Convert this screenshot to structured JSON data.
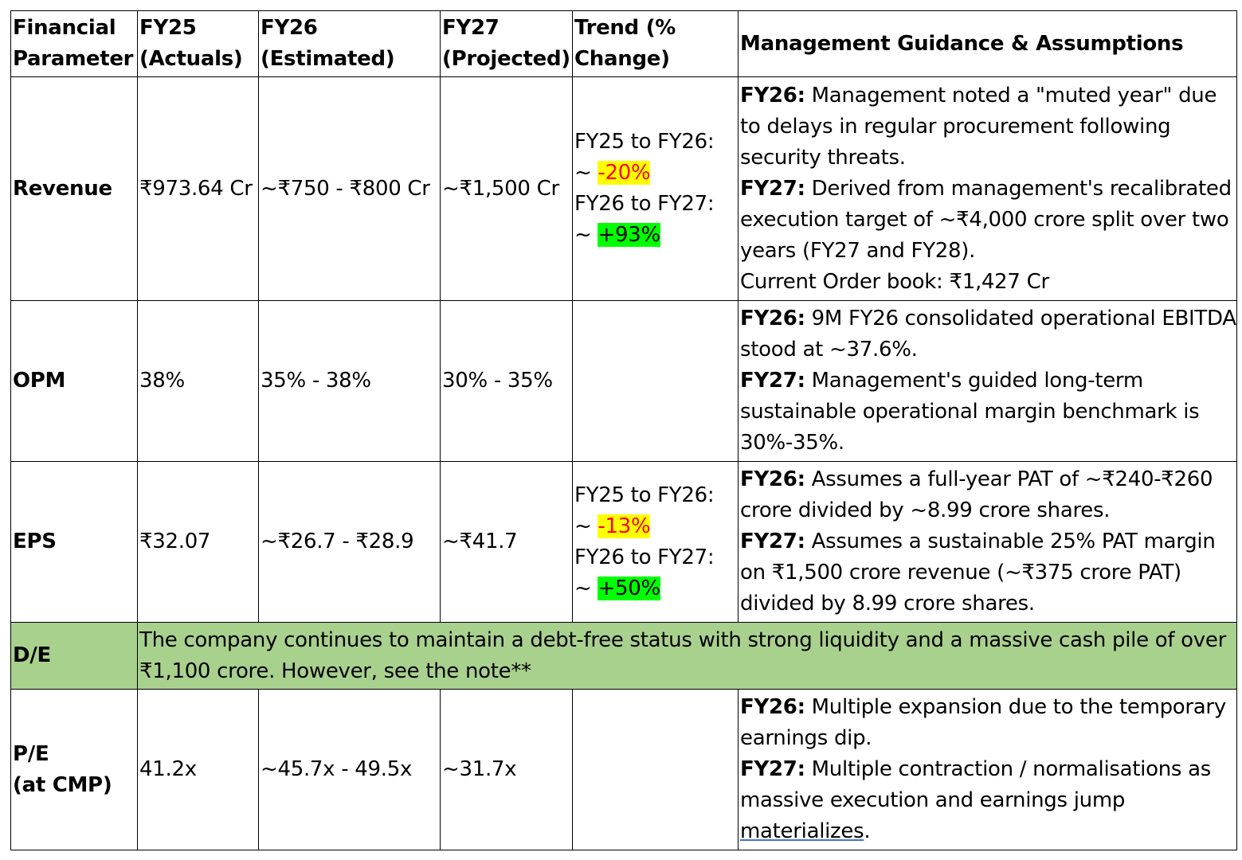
{
  "headers": {
    "parameter": "Financial Parameter",
    "fy25": "FY25 (Actuals)",
    "fy26": "FY26 (Estimated)",
    "fy27": "FY27 (Projected)",
    "trend": "Trend (% Change)",
    "guidance": "Management Guidance & Assumptions"
  },
  "rows": {
    "revenue": {
      "label": "Revenue",
      "fy25": "₹973.64 Cr",
      "fy26": "~₹750 - ₹800 Cr",
      "fy27": "~₹1,500 Cr",
      "trend": {
        "t1_label": "FY25 to FY26:",
        "t1_prefix": "~",
        "t1_value": "-20%",
        "t2_label": "FY26 to FY27:",
        "t2_prefix": "~",
        "t2_value": "+93%"
      },
      "guidance": {
        "g1_key": "FY26:",
        "g1_text": "Management noted a \"muted year\" due to delays in regular procurement following security threats.",
        "g2_key": "FY27:",
        "g2_text": "Derived from management's recalibrated execution target of ~₹4,000 crore split over two years (FY27 and FY28).",
        "g3_text": "Current Order book: ₹1,427 Cr"
      }
    },
    "opm": {
      "label": "OPM",
      "fy25": "38%",
      "fy26": "35% - 38%",
      "fy27": "30% - 35%",
      "guidance": {
        "g1_key": "FY26:",
        "g1_text": "9M FY26 consolidated operational EBITDA stood at ~37.6%.",
        "g2_key": "FY27:",
        "g2_text": "Management's guided long-term sustainable operational margin benchmark is 30%-35%."
      }
    },
    "eps": {
      "label": "EPS",
      "fy25": "₹32.07",
      "fy26": "~₹26.7 - ₹28.9",
      "fy27": "~₹41.7",
      "trend": {
        "t1_label": "FY25 to FY26:",
        "t1_prefix": "~",
        "t1_value": "-13%",
        "t2_label": "FY26 to FY27:",
        "t2_prefix": "~",
        "t2_value": "+50%"
      },
      "guidance": {
        "g1_key": "FY26:",
        "g1_text": "Assumes a full-year PAT of ~₹240-₹260 crore divided by ~8.99 crore shares.",
        "g2_key": "FY27:",
        "g2_text": "Assumes a sustainable 25% PAT margin on ₹1,500 crore revenue (~₹375 crore PAT) divided by 8.99 crore shares."
      }
    },
    "de": {
      "label": "D/E",
      "text": "The company continues to maintain a debt-free status with strong liquidity and a massive cash pile of over ₹1,100 crore. However, see the note**"
    },
    "pe": {
      "label_line1": "P/E",
      "label_line2": "(at CMP)",
      "fy25": "41.2x",
      "fy26": "~45.7x - 49.5x",
      "fy27": "~31.7x",
      "guidance": {
        "g1_key": "FY26:",
        "g1_text": "Multiple expansion due to the temporary earnings dip.",
        "g2_key": "FY27:",
        "g2_text": "Multiple contraction / normalisations as massive execution and earnings jump",
        "g2_underlined": "materializes",
        "g2_end": "."
      }
    }
  },
  "colors": {
    "de_row_bg": "#a9d18e",
    "negative_highlight_bg": "#ffff00",
    "negative_text": "#ff0000",
    "positive_highlight_bg": "#00ff00"
  }
}
